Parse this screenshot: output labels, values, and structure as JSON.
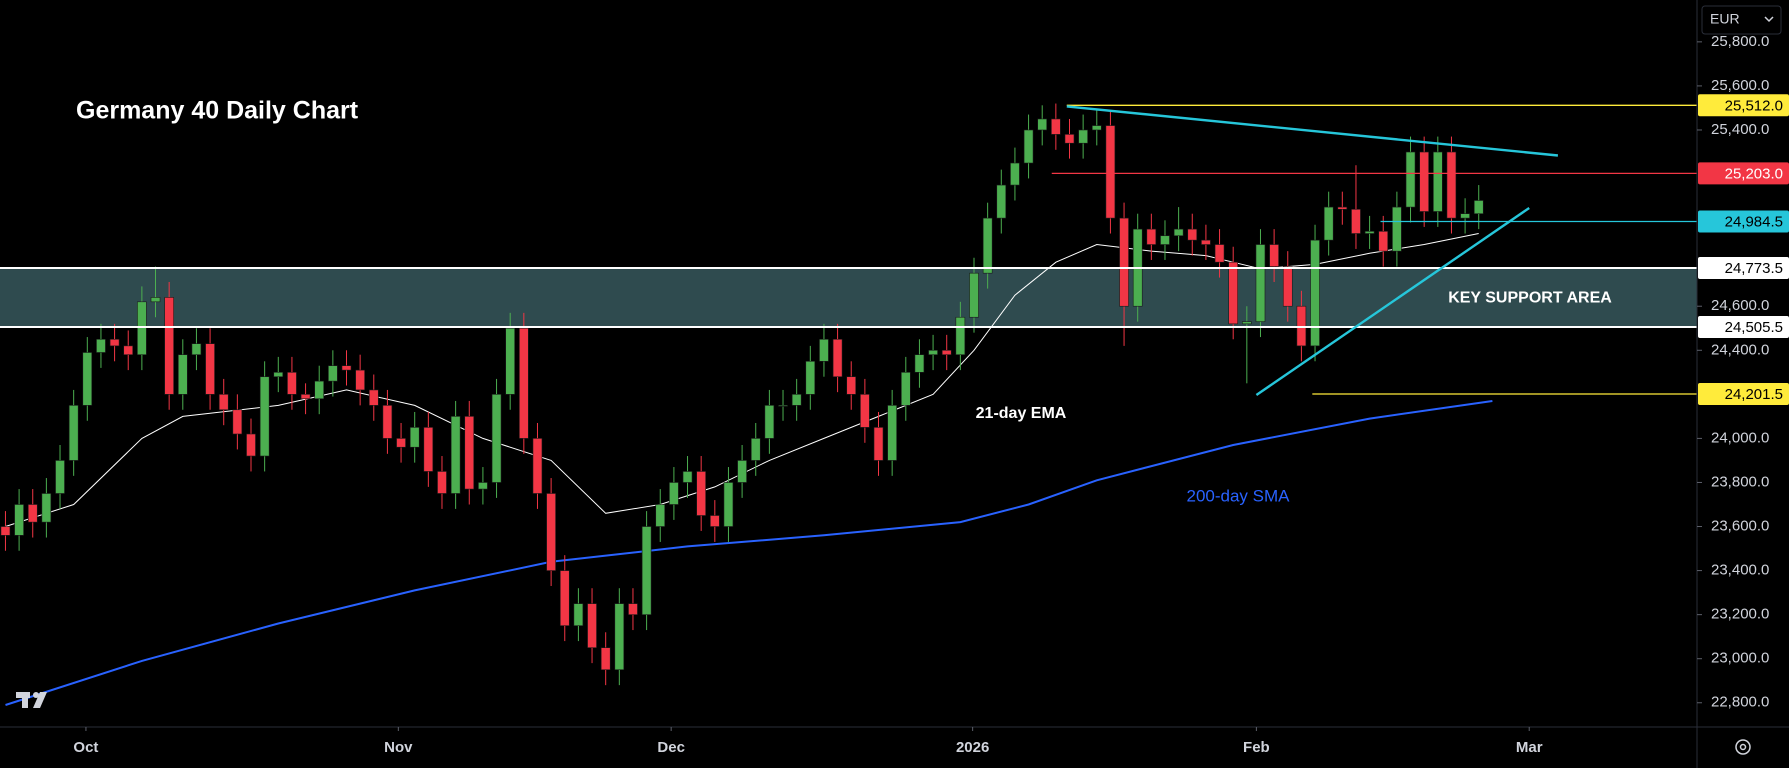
{
  "chart_data": {
    "type": "candlestick",
    "title": "Germany 40 Daily Chart",
    "currency": "EUR",
    "up_color": "#4caf50",
    "down_color": "#f23645",
    "open": [
      23600,
      23560,
      23700,
      23620,
      23750,
      23900,
      24150,
      24390,
      24450,
      24420,
      24380,
      24620,
      24640,
      24200,
      24380,
      24430,
      24200,
      24130,
      24020,
      23920,
      24280,
      24300,
      24200,
      24180,
      24260,
      24330,
      24310,
      24220,
      24150,
      24000,
      23960,
      24050,
      23850,
      23750,
      24100,
      23770,
      23800,
      24200,
      24500,
      24000,
      23750,
      23400,
      23150,
      23250,
      23050,
      22950,
      23250,
      23200,
      23600,
      23700,
      23800,
      23850,
      23650,
      23600,
      23800,
      23900,
      24000,
      24150,
      24150,
      24200,
      24350,
      24450,
      24280,
      24200,
      24050,
      23900,
      24150,
      24300,
      24380,
      24400,
      24380,
      24550,
      24750,
      25000,
      25150,
      25250,
      25400,
      25450,
      25380,
      25340,
      25400,
      25420,
      25000,
      24600,
      24950,
      24880,
      24920,
      24950,
      24900,
      24880,
      24800,
      24520,
      24530,
      24880,
      24780,
      24600,
      24420,
      24900,
      25050,
      25040,
      24930,
      24940,
      24850,
      25050,
      25300,
      25030,
      25300,
      25000,
      25020
    ],
    "high": [
      23670,
      23770,
      23770,
      23820,
      23970,
      24220,
      24460,
      24520,
      24520,
      24490,
      24690,
      24780,
      24710,
      24450,
      24500,
      24500,
      24270,
      24200,
      24090,
      24350,
      24370,
      24370,
      24250,
      24330,
      24400,
      24400,
      24380,
      24290,
      24220,
      24070,
      24120,
      24120,
      23920,
      24170,
      24170,
      23870,
      24270,
      24570,
      24570,
      24070,
      23820,
      23470,
      23320,
      23320,
      23120,
      23320,
      23320,
      23670,
      23770,
      23870,
      23920,
      23920,
      23720,
      23870,
      23970,
      24070,
      24220,
      24220,
      24270,
      24420,
      24520,
      24520,
      24350,
      24270,
      24120,
      24220,
      24370,
      24450,
      24470,
      24470,
      24620,
      24820,
      25070,
      25220,
      25320,
      25470,
      25512,
      25520,
      25450,
      25470,
      25490,
      25490,
      25070,
      25020,
      25020,
      24990,
      25050,
      25020,
      24970,
      24950,
      24870,
      24600,
      24950,
      24950,
      24850,
      24670,
      24970,
      25120,
      25120,
      25240,
      25010,
      25010,
      25120,
      25370,
      25370,
      25370,
      25370,
      25090,
      25150
    ],
    "low": [
      23490,
      23490,
      23550,
      23550,
      23680,
      23830,
      24080,
      24320,
      24350,
      24310,
      24310,
      24550,
      24130,
      24130,
      24310,
      24130,
      24060,
      23950,
      23850,
      23850,
      24210,
      24130,
      24110,
      24110,
      24190,
      24240,
      24150,
      24080,
      23930,
      23890,
      23890,
      23780,
      23680,
      23680,
      23700,
      23700,
      23730,
      24130,
      23930,
      23680,
      23330,
      23080,
      23080,
      22980,
      22880,
      22880,
      23130,
      23130,
      23530,
      23630,
      23730,
      23580,
      23530,
      23530,
      23730,
      23830,
      23930,
      24080,
      24080,
      24130,
      24280,
      24210,
      24130,
      23980,
      23830,
      23830,
      24080,
      24230,
      24310,
      24310,
      24310,
      24480,
      24680,
      24930,
      25080,
      25180,
      25330,
      25310,
      25270,
      25270,
      25330,
      24930,
      24420,
      24530,
      24810,
      24810,
      24850,
      24830,
      24810,
      24730,
      24450,
      24250,
      24460,
      24710,
      24530,
      24350,
      24350,
      24830,
      24970,
      24860,
      24860,
      24780,
      24780,
      24980,
      24960,
      24960,
      24930,
      24930,
      24950
    ],
    "close": [
      23560,
      23700,
      23620,
      23750,
      23900,
      24150,
      24390,
      24450,
      24420,
      24380,
      24620,
      24640,
      24200,
      24380,
      24430,
      24200,
      24130,
      24020,
      23920,
      24280,
      24300,
      24200,
      24180,
      24260,
      24330,
      24310,
      24220,
      24150,
      24000,
      23960,
      24050,
      23850,
      23750,
      24100,
      23770,
      23800,
      24200,
      24500,
      24000,
      23750,
      23400,
      23150,
      23250,
      23050,
      22950,
      23250,
      23200,
      23600,
      23700,
      23800,
      23850,
      23650,
      23600,
      23800,
      23900,
      24000,
      24150,
      24150,
      24200,
      24350,
      24450,
      24280,
      24200,
      24050,
      23900,
      24150,
      24300,
      24380,
      24400,
      24380,
      24550,
      24750,
      25000,
      25150,
      25250,
      25400,
      25450,
      25380,
      25340,
      25400,
      25420,
      25000,
      24600,
      24950,
      24880,
      24920,
      24950,
      24900,
      24880,
      24800,
      24520,
      24530,
      24880,
      24780,
      24600,
      24420,
      24900,
      25050,
      25040,
      24930,
      24940,
      24850,
      25050,
      25300,
      25030,
      25300,
      25000,
      25020,
      25080
    ],
    "xlim": [
      -0.4,
      124
    ],
    "xticks": [
      {
        "value": 5.9,
        "label": "Oct"
      },
      {
        "value": 28.8,
        "label": "Nov"
      },
      {
        "value": 48.8,
        "label": "Dec"
      },
      {
        "value": 70.9,
        "label": "2026"
      },
      {
        "value": 91.7,
        "label": "Feb"
      },
      {
        "value": 111.7,
        "label": "Mar"
      }
    ],
    "ylim": [
      22690,
      25990
    ],
    "yticks": [
      {
        "value": 25800,
        "label": "25,800.0"
      },
      {
        "value": 25600,
        "label": "25,600.0"
      },
      {
        "value": 25400,
        "label": "25,400.0"
      },
      {
        "value": 24600,
        "label": "24,600.0"
      },
      {
        "value": 24400,
        "label": "24,400.0"
      },
      {
        "value": 24000,
        "label": "24,000.0"
      },
      {
        "value": 23800,
        "label": "23,800.0"
      },
      {
        "value": 23600,
        "label": "23,600.0"
      },
      {
        "value": 23400,
        "label": "23,400.0"
      },
      {
        "value": 23200,
        "label": "23,200.0"
      },
      {
        "value": 23000,
        "label": "23,000.0"
      },
      {
        "value": 22800,
        "label": "22,800.0"
      }
    ],
    "lines": [
      {
        "name": "21-day EMA",
        "color": "#ffffff",
        "x": [
          0,
          5,
          10,
          13,
          20,
          25,
          30,
          35,
          40,
          44,
          48,
          52,
          56,
          60,
          64,
          68,
          71,
          74,
          77,
          80,
          84,
          88,
          92,
          96,
          100,
          104,
          108
        ],
        "values": [
          23600,
          23700,
          24000,
          24100,
          24150,
          24220,
          24150,
          24000,
          23900,
          23660,
          23700,
          23780,
          23900,
          24000,
          24100,
          24200,
          24400,
          24650,
          24800,
          24880,
          24850,
          24830,
          24770,
          24790,
          24840,
          24880,
          24930
        ]
      },
      {
        "name": "200-day SMA",
        "color": "#2962ff",
        "x": [
          0,
          10,
          20,
          30,
          40,
          50,
          60,
          70,
          75,
          80,
          90,
          100,
          109
        ],
        "values": [
          22790,
          22990,
          23160,
          23310,
          23440,
          23510,
          23560,
          23620,
          23700,
          23810,
          23970,
          24090,
          24170
        ]
      }
    ],
    "levels": [
      {
        "value": 25512,
        "label": "25,512.0",
        "color": "#ffeb3b",
        "from": 77.8
      },
      {
        "value": 25203,
        "label": "25,203.0",
        "color": "#f23645",
        "from": 76.7
      },
      {
        "value": 24984.5,
        "label": "24,984.5",
        "color": "#26c6da",
        "from": 100.8
      },
      {
        "value": 24773.5,
        "label": "24,773.5",
        "color": "#ffffff"
      },
      {
        "value": 24505.5,
        "label": "24,505.5",
        "color": "#ffffff"
      },
      {
        "value": 24201.5,
        "label": "24,201.5",
        "color": "#ffeb3b",
        "from": 95.8
      }
    ],
    "trendlines": [
      {
        "color": "#26c6da",
        "x": [
          77.8,
          113.8
        ],
        "values": [
          25507,
          25284
        ]
      },
      {
        "color": "#26c6da",
        "x": [
          91.7,
          111.7
        ],
        "values": [
          24197,
          25046
        ]
      }
    ],
    "zone": {
      "levels": [
        24505.5,
        24773.5
      ],
      "label": "KEY SUPPORT AREA",
      "color": "#2f4b4f"
    }
  }
}
